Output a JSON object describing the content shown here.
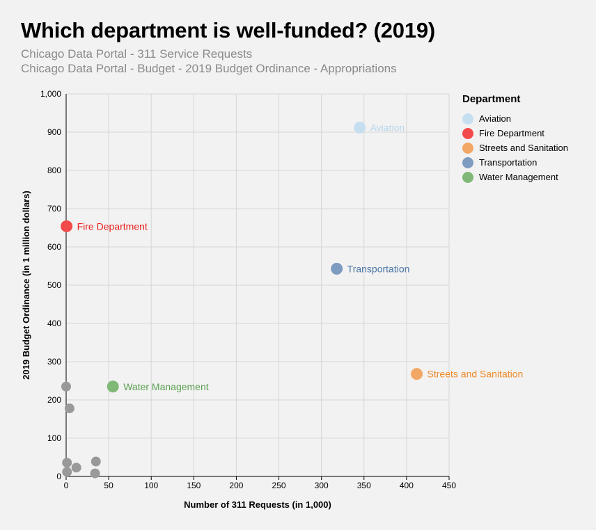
{
  "header": {
    "title": "Which department is well-funded? (2019)",
    "subtitle_1": "Chicago Data Portal - 311 Service Requests",
    "subtitle_2": "Chicago Data Portal - Budget - 2019 Budget Ordinance - Appropriations"
  },
  "chart_data": {
    "type": "scatter",
    "xlabel": "Number of 311 Requests (in 1,000)",
    "ylabel": "2019 Budget Ordinance (in 1 million dollars)",
    "xlim": [
      0,
      450
    ],
    "ylim": [
      0,
      1000
    ],
    "x_ticks": [
      0,
      50,
      100,
      150,
      200,
      250,
      300,
      350,
      400,
      450
    ],
    "y_ticks": [
      0,
      100,
      200,
      300,
      400,
      500,
      600,
      700,
      800,
      900,
      1000
    ],
    "x_tick_labels": [
      "0",
      "50",
      "100",
      "150",
      "200",
      "250",
      "300",
      "350",
      "400",
      "450"
    ],
    "y_tick_labels": [
      "0",
      "100",
      "200",
      "300",
      "400",
      "500",
      "600",
      "700",
      "800",
      "900",
      "1,000"
    ],
    "grid": true,
    "legend": {
      "title": "Department",
      "placement": "right",
      "entries": [
        {
          "name": "Aviation",
          "color": "#c6dff0"
        },
        {
          "name": "Fire Department",
          "color": "#f24a4a"
        },
        {
          "name": "Streets and Sanitation",
          "color": "#f2a766"
        },
        {
          "name": "Transportation",
          "color": "#7d9cc0"
        },
        {
          "name": "Water Management",
          "color": "#80b877"
        }
      ]
    },
    "series": [
      {
        "name": "Aviation",
        "points": [
          {
            "x": 345,
            "y": 912
          }
        ],
        "color": "#c6dff0",
        "label_color": "#b8d6ea"
      },
      {
        "name": "Fire Department",
        "points": [
          {
            "x": 0.5,
            "y": 654
          }
        ],
        "color": "#f24a4a",
        "label_color": "#e8201c"
      },
      {
        "name": "Streets and Sanitation",
        "points": [
          {
            "x": 412,
            "y": 268
          }
        ],
        "color": "#f2a766",
        "label_color": "#ee8a2a"
      },
      {
        "name": "Transportation",
        "points": [
          {
            "x": 318,
            "y": 543
          }
        ],
        "color": "#7d9cc0",
        "label_color": "#4d78a8"
      },
      {
        "name": "Water Management",
        "points": [
          {
            "x": 55,
            "y": 235
          }
        ],
        "color": "#80b877",
        "label_color": "#5aa050"
      }
    ],
    "other_points": {
      "color": "#999999",
      "points": [
        {
          "x": 0,
          "y": 235
        },
        {
          "x": 4,
          "y": 178
        },
        {
          "x": 1,
          "y": 36
        },
        {
          "x": 1,
          "y": 12
        },
        {
          "x": 12,
          "y": 23
        },
        {
          "x": 35,
          "y": 39
        },
        {
          "x": 34,
          "y": 8
        }
      ]
    }
  }
}
